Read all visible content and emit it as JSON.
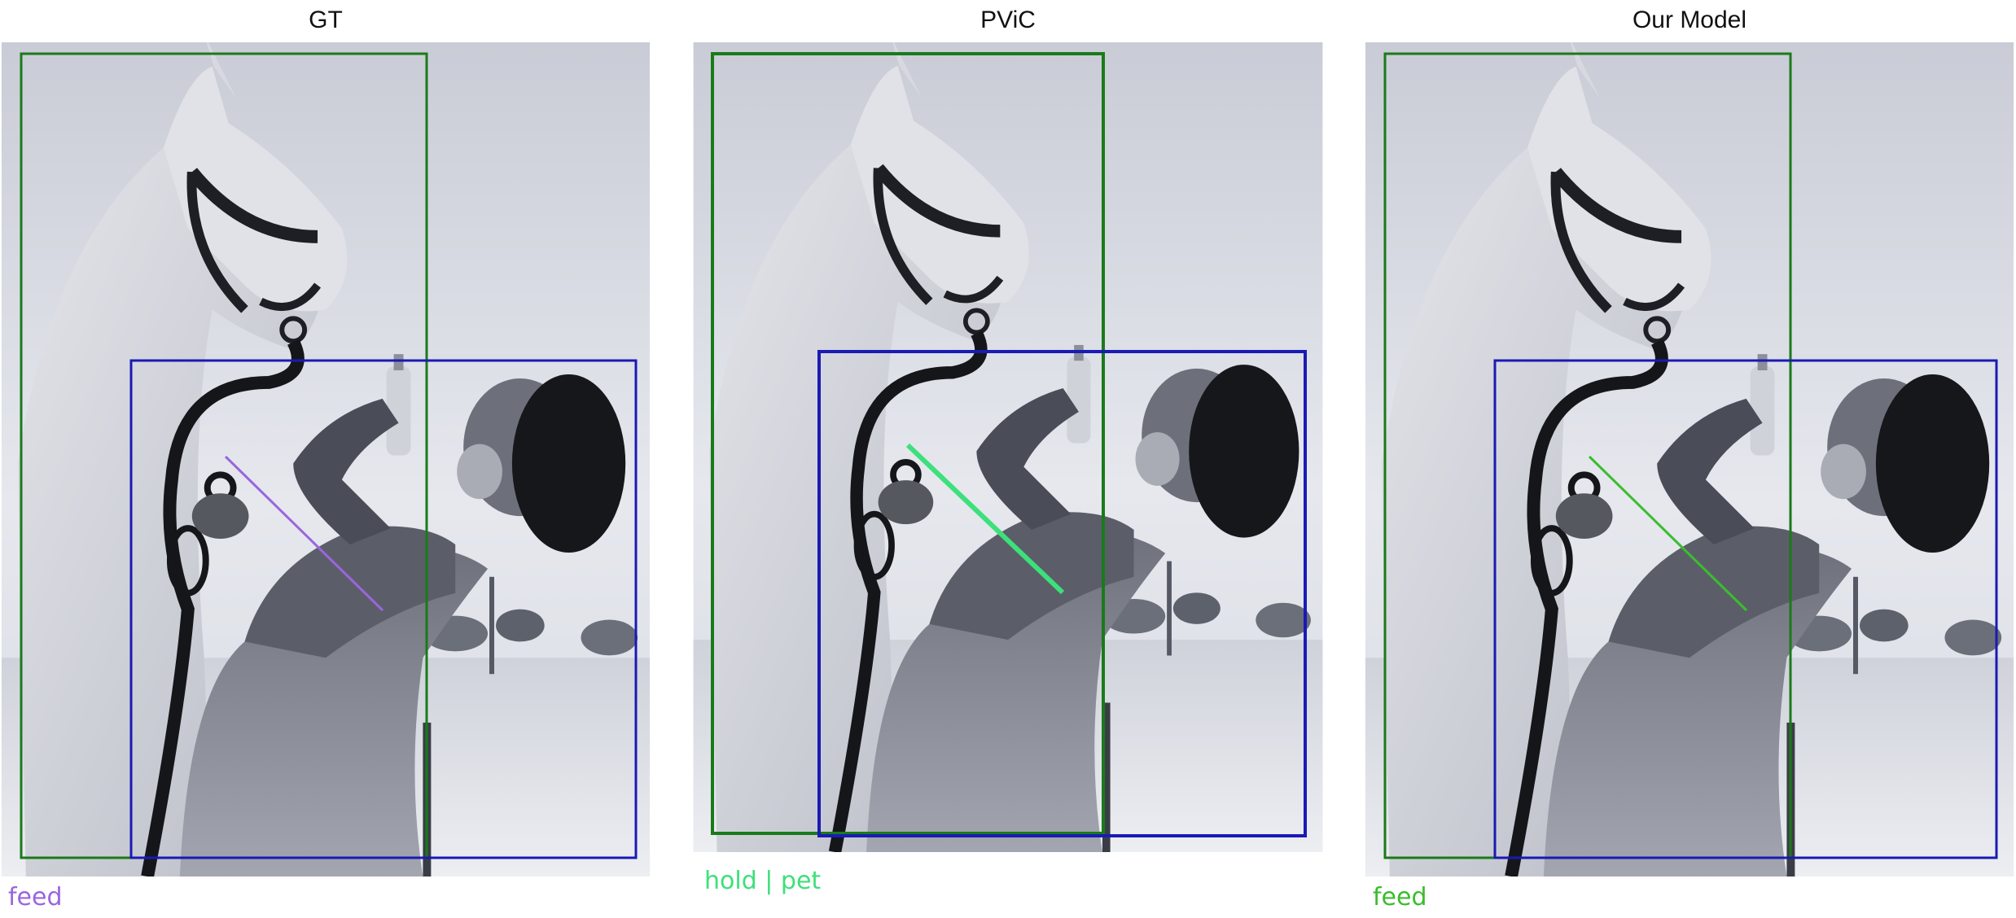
{
  "panels": [
    {
      "title": "GT",
      "caption": "feed",
      "caption_color": "#9966dd",
      "line_color": "#9966dd",
      "human_box_color": "#1a1ab4",
      "object_box_color": "#1a7a1a"
    },
    {
      "title": "PViC",
      "caption": "hold | pet",
      "caption_color": "#3de07a",
      "line_color": "#3de07a",
      "human_box_color": "#1a1ab4",
      "object_box_color": "#1a7a1a"
    },
    {
      "title": "Our Model",
      "caption": "feed",
      "caption_color": "#3bbd2e",
      "line_color": "#3bbd2e",
      "human_box_color": "#1a1ab4",
      "object_box_color": "#1a7a1a"
    }
  ]
}
